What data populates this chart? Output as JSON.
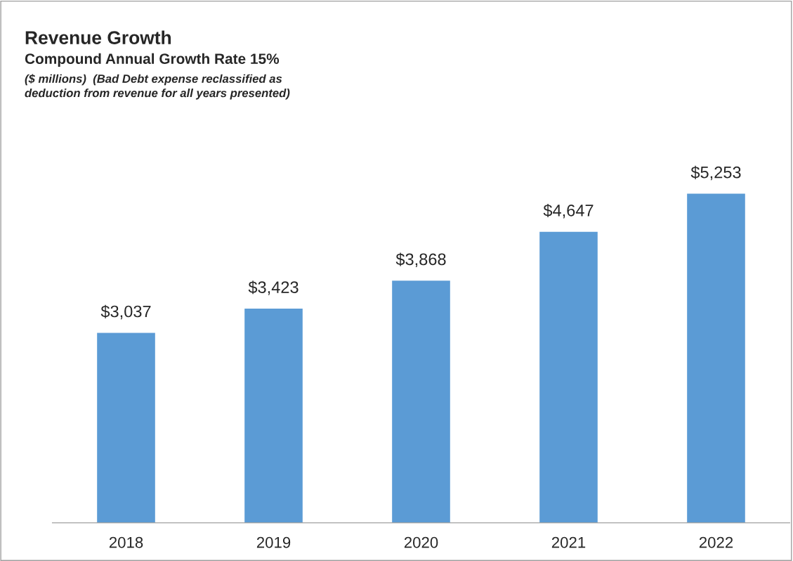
{
  "chart_data": {
    "type": "bar",
    "title": "Revenue Growth",
    "subtitle": "Compound Annual Growth Rate 15%",
    "annotations": [
      "($ millions)  (Bad Debt expense reclassified as\ndeduction from revenue for all years presented)"
    ],
    "categories": [
      "2018",
      "2019",
      "2020",
      "2021",
      "2022"
    ],
    "values": [
      3037,
      3423,
      3868,
      4647,
      5253
    ],
    "value_labels": [
      "$3,037",
      "$3,423",
      "$3,868",
      "$4,647",
      "$5,253"
    ],
    "color": "#5b9bd5",
    "grid": false,
    "legend": false
  }
}
